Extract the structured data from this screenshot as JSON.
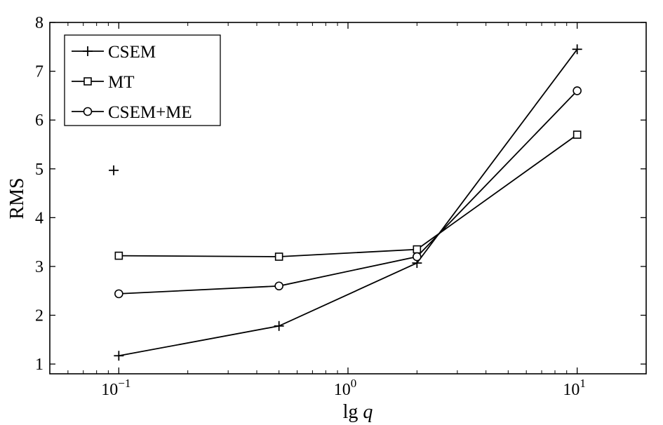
{
  "chart_data": {
    "type": "line",
    "xscale": "log",
    "xlim": [
      0.05,
      20
    ],
    "ylim": [
      0.8,
      8
    ],
    "xlabel": "lg q",
    "xlabel_parts": {
      "prefix": "lg",
      "variable": "q"
    },
    "ylabel": "RMS",
    "x_ticks": [
      {
        "value": 0.1,
        "base": "10",
        "exp": "−1"
      },
      {
        "value": 1,
        "base": "10",
        "exp": "0"
      },
      {
        "value": 10,
        "base": "10",
        "exp": "1"
      }
    ],
    "y_ticks": [
      "1",
      "2",
      "3",
      "4",
      "5",
      "6",
      "7",
      "8"
    ],
    "legend_position": "top-left",
    "series": [
      {
        "name": "CSEM",
        "marker": "plus",
        "x": [
          0.1,
          0.5,
          2,
          10
        ],
        "y": [
          1.17,
          1.78,
          3.07,
          7.45
        ],
        "extra_points": [
          {
            "x": 0.095,
            "y": 4.97
          }
        ]
      },
      {
        "name": "MT",
        "marker": "square",
        "x": [
          0.1,
          0.5,
          2,
          10
        ],
        "y": [
          3.22,
          3.2,
          3.35,
          5.7
        ]
      },
      {
        "name": "CSEM+ME",
        "marker": "circle",
        "x": [
          0.1,
          0.5,
          2,
          10
        ],
        "y": [
          2.44,
          2.6,
          3.2,
          6.6
        ]
      }
    ]
  }
}
